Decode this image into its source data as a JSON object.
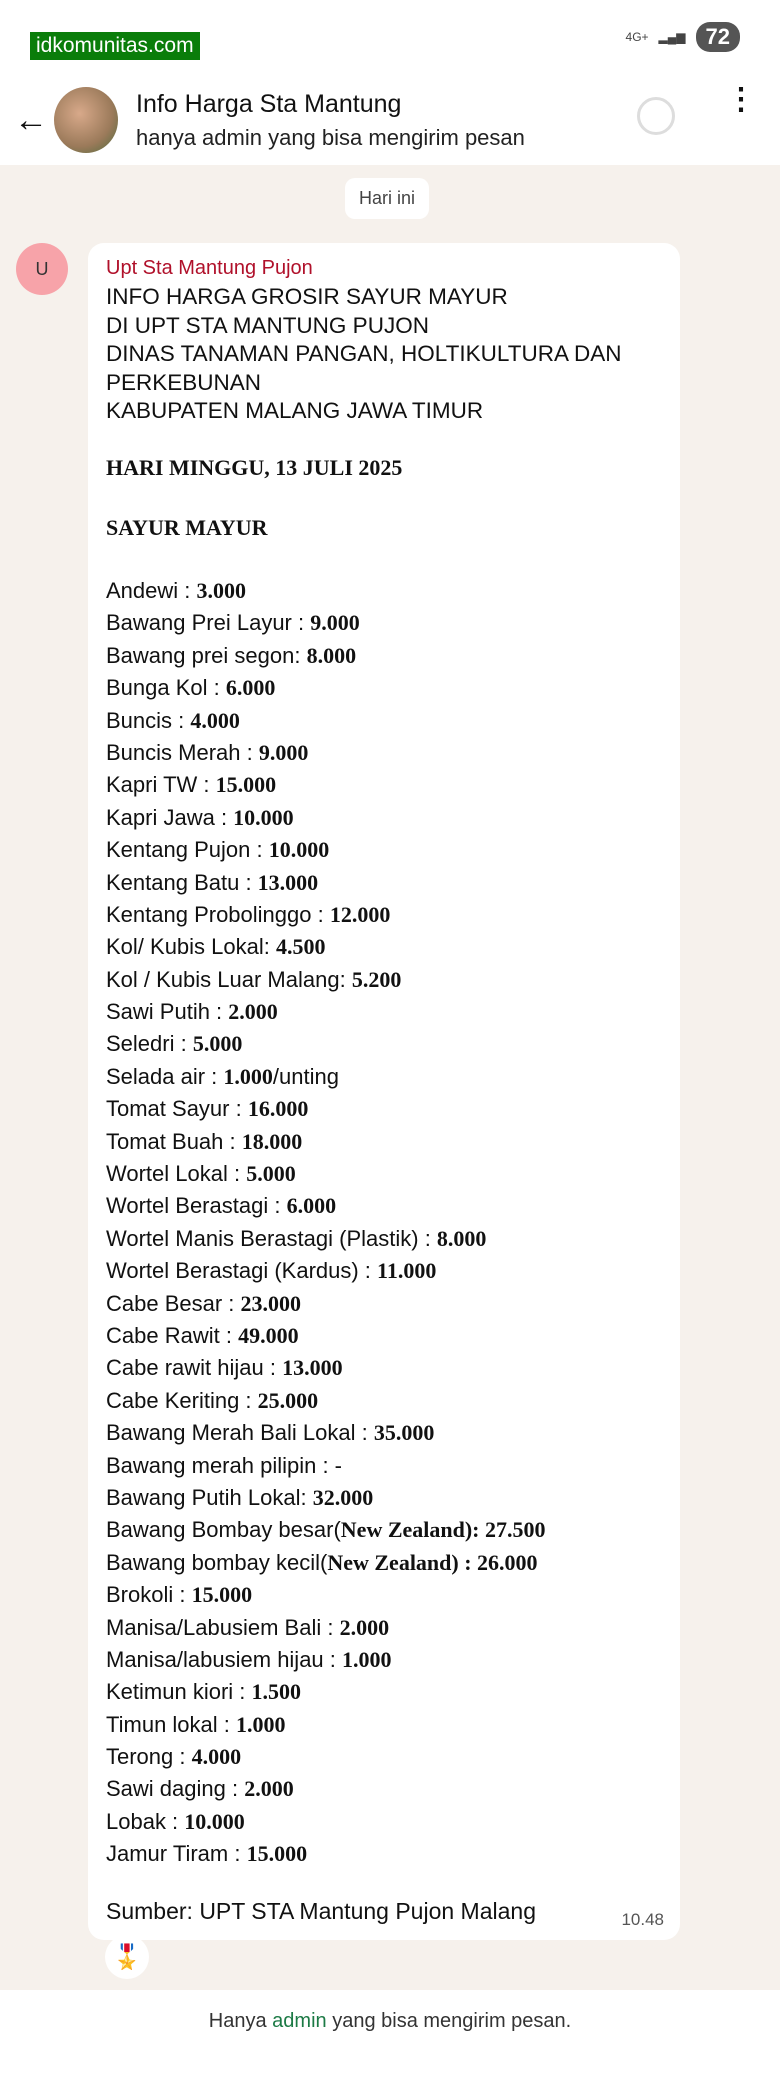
{
  "status_bar": {
    "watermark": "idkomunitas.com",
    "network": "4G+",
    "battery": "72"
  },
  "header": {
    "title": "Info Harga Sta Mantung",
    "subtitle": "hanya admin yang bisa mengirim pesan"
  },
  "date_chip": "Hari ini",
  "message": {
    "avatar_letter": "U",
    "sender": "Upt Sta Mantung Pujon",
    "heading_lines": [
      "INFO HARGA GROSIR SAYUR MAYUR",
      "DI UPT STA MANTUNG PUJON",
      "DINAS TANAMAN PANGAN, HOLTIKULTURA DAN",
      "PERKEBUNAN",
      "KABUPATEN MALANG JAWA TIMUR"
    ],
    "day": "HARI MINGGU, 13 JULI 2025",
    "section": "SAYUR MAYUR",
    "items": [
      {
        "name": "Andewi : ",
        "value": "3.000"
      },
      {
        "name": "Bawang Prei Layur : ",
        "value": "9.000"
      },
      {
        "name": "Bawang prei segon: ",
        "value": "8.000"
      },
      {
        "name": "Bunga Kol : ",
        "value": "6.000"
      },
      {
        "name": "Buncis : ",
        "value": "4.000"
      },
      {
        "name": "Buncis Merah : ",
        "value": "9.000"
      },
      {
        "name": "Kapri TW : ",
        "value": "15.000"
      },
      {
        "name": "Kapri Jawa : ",
        "value": "10.000"
      },
      {
        "name": "Kentang Pujon : ",
        "value": "10.000"
      },
      {
        "name": "Kentang Batu : ",
        "value": "13.000"
      },
      {
        "name": "Kentang Probolinggo : ",
        "value": "12.000"
      },
      {
        "name": "Kol/ Kubis Lokal: ",
        "value": "4.500"
      },
      {
        "name": "Kol / Kubis Luar Malang: ",
        "value": "5.200"
      },
      {
        "name": "Sawi Putih : ",
        "value": "2.000"
      },
      {
        "name": "Seledri : ",
        "value": "5.000"
      },
      {
        "name": "Selada air : ",
        "value": "1.000",
        "suffix": "/unting"
      },
      {
        "name": "Tomat Sayur : ",
        "value": "16.000"
      },
      {
        "name": "Tomat Buah : ",
        "value": "18.000"
      },
      {
        "name": "Wortel Lokal : ",
        "value": "5.000"
      },
      {
        "name": "Wortel Berastagi : ",
        "value": "6.000"
      },
      {
        "name": "Wortel Manis Berastagi (Plastik) : ",
        "value": "8.000"
      },
      {
        "name": "Wortel  Berastagi (Kardus) : ",
        "value": "11.000"
      },
      {
        "name": "Cabe Besar : ",
        "value": "23.000"
      },
      {
        "name": "Cabe Rawit : ",
        "value": "49.000"
      },
      {
        "name": "Cabe rawit hijau : ",
        "value": "13.000"
      },
      {
        "name": "Cabe Keriting : ",
        "value": "25.000"
      },
      {
        "name": "Bawang Merah Bali Lokal : ",
        "value": "35.000"
      },
      {
        "name": "Bawang merah pilipin : -",
        "value": ""
      },
      {
        "name": "Bawang Putih Lokal: ",
        "value": "32.000"
      },
      {
        "name": "Bawang Bombay besar(",
        "value": "New Zealand): 27.500"
      },
      {
        "name": "Bawang bombay kecil(",
        "value": "New Zealand)  : 26.000"
      },
      {
        "name": "Brokoli : ",
        "value": "15.000"
      },
      {
        "name": "Manisa/Labusiem Bali : ",
        "value": "2.000"
      },
      {
        "name": "Manisa/labusiem hijau : ",
        "value": "1.000"
      },
      {
        "name": "Ketimun kiori : ",
        "value": "1.500"
      },
      {
        "name": "Timun lokal : ",
        "value": "1.000"
      },
      {
        "name": "Terong : ",
        "value": "4.000"
      },
      {
        "name": "Sawi daging : ",
        "value": "2.000"
      },
      {
        "name": "Lobak : ",
        "value": "10.000"
      },
      {
        "name": "Jamur Tiram : ",
        "value": "15.000"
      }
    ],
    "source": "Sumber:  UPT STA Mantung Pujon Malang",
    "time": "10.48",
    "reaction": "🎖️"
  },
  "footer": {
    "before": "Hanya ",
    "link": "admin",
    "after": " yang bisa mengirim pesan."
  }
}
